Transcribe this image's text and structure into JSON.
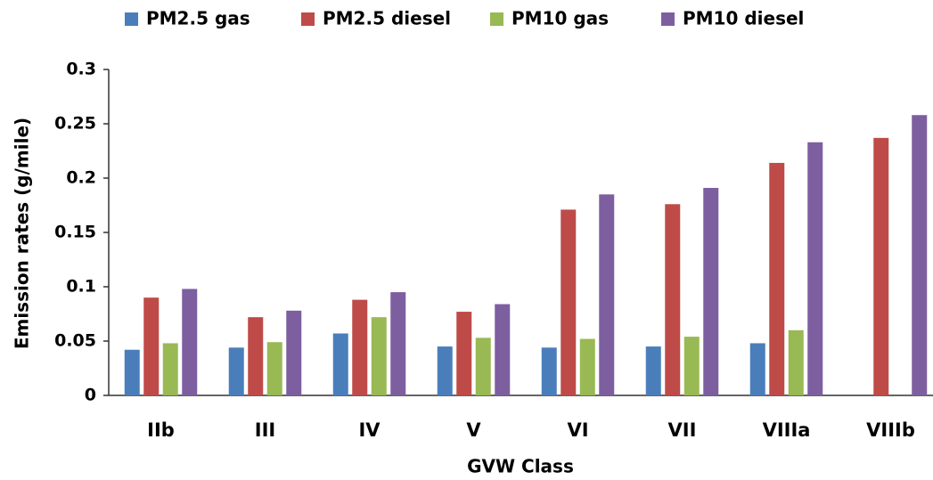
{
  "chart_data": {
    "type": "bar",
    "x_label": "GVW Class",
    "y_label": "Emission rates (g/mile)",
    "categories": [
      "IIb",
      "III",
      "IV",
      "V",
      "VI",
      "VII",
      "VIIIa",
      "VIIIb"
    ],
    "series": [
      {
        "name": "PM2.5 gas",
        "color": "#4a7ebb",
        "values": [
          0.042,
          0.044,
          0.057,
          0.045,
          0.044,
          0.045,
          0.048,
          null
        ]
      },
      {
        "name": "PM2.5 diesel",
        "color": "#be4b48",
        "values": [
          0.09,
          0.072,
          0.088,
          0.077,
          0.171,
          0.176,
          0.214,
          0.237
        ]
      },
      {
        "name": "PM10 gas",
        "color": "#98b954",
        "values": [
          0.048,
          0.049,
          0.072,
          0.053,
          0.052,
          0.054,
          0.06,
          null
        ]
      },
      {
        "name": "PM10 diesel",
        "color": "#7d5fa0",
        "values": [
          0.098,
          0.078,
          0.095,
          0.084,
          0.185,
          0.191,
          0.233,
          0.258
        ]
      }
    ],
    "ylim": [
      0,
      0.3
    ],
    "yticks": [
      0,
      0.05,
      0.1,
      0.15,
      0.2,
      0.25,
      0.3
    ],
    "grid": false,
    "legend": "top"
  }
}
